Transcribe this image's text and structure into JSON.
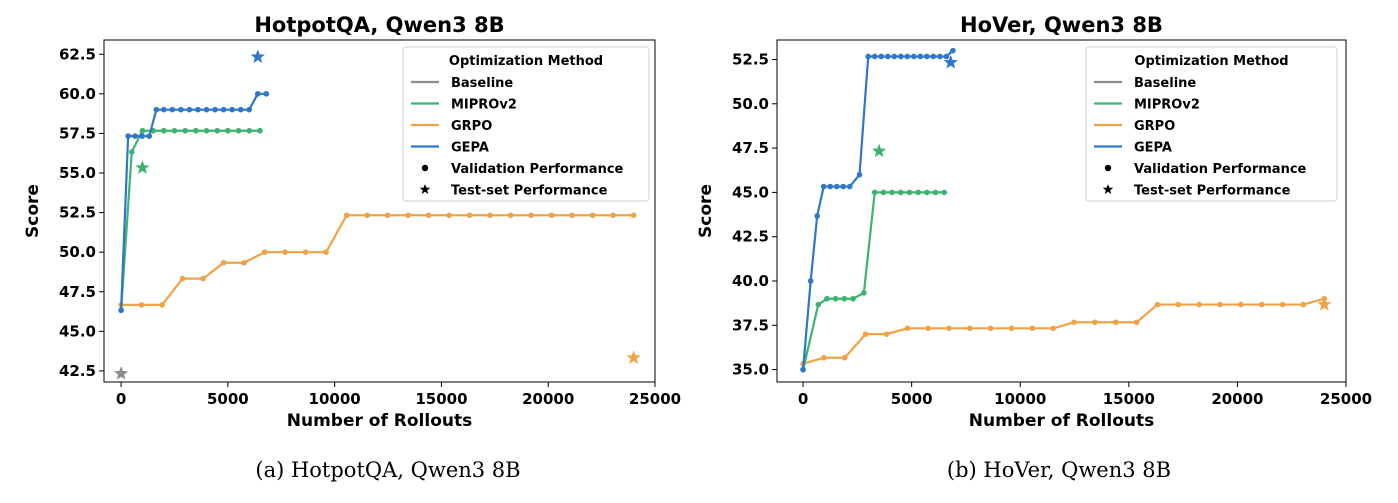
{
  "legend": {
    "title": "Optimization Method",
    "items": [
      {
        "kind": "line",
        "label": "Baseline",
        "color": "#8c8c8c"
      },
      {
        "kind": "line",
        "label": "MIPROv2",
        "color": "#3cb371"
      },
      {
        "kind": "line",
        "label": "GRPO",
        "color": "#f0a346"
      },
      {
        "kind": "line",
        "label": "GEPA",
        "color": "#2f77c8"
      },
      {
        "kind": "dot",
        "label": "Validation Performance",
        "color": "#000000"
      },
      {
        "kind": "star",
        "label": "Test-set Performance",
        "color": "#000000"
      }
    ]
  },
  "charts": [
    {
      "caption": "(a) HotpotQA, Qwen3 8B"
    },
    {
      "caption": "(b) HoVer, Qwen3 8B"
    }
  ],
  "chart_data": [
    {
      "type": "line",
      "title": "HotpotQA, Qwen3 8B",
      "xlabel": "Number of Rollouts",
      "ylabel": "Score",
      "xlim": [
        -800,
        25000
      ],
      "ylim": [
        41.8,
        63.4
      ],
      "xticks": [
        0,
        5000,
        10000,
        15000,
        20000,
        25000
      ],
      "yticks": [
        42.5,
        45.0,
        47.5,
        50.0,
        52.5,
        55.0,
        57.5,
        60.0,
        62.5
      ],
      "tick_decimals": 1,
      "series": [
        {
          "name": "GRPO",
          "color": "#f0a346",
          "x": [
            0,
            960,
            1920,
            2880,
            3840,
            4800,
            5760,
            6720,
            7680,
            8640,
            9600,
            10560,
            11520,
            12480,
            13440,
            14400,
            15360,
            16320,
            17280,
            18240,
            19200,
            20160,
            21120,
            22080,
            23040,
            24000
          ],
          "y": [
            46.67,
            46.67,
            46.67,
            48.33,
            48.33,
            49.33,
            49.33,
            50.0,
            50.0,
            50.0,
            50.0,
            52.33,
            52.33,
            52.33,
            52.33,
            52.33,
            52.33,
            52.33,
            52.33,
            52.33,
            52.33,
            52.33,
            52.33,
            52.33,
            52.33,
            52.33
          ]
        },
        {
          "name": "MIPROv2",
          "color": "#3cb371",
          "x": [
            0,
            500,
            1000,
            1500,
            2000,
            2500,
            3000,
            3500,
            4000,
            4500,
            5000,
            5500,
            6000,
            6500
          ],
          "y": [
            46.33,
            56.33,
            57.67,
            57.67,
            57.67,
            57.67,
            57.67,
            57.67,
            57.67,
            57.67,
            57.67,
            57.67,
            57.67,
            57.67
          ]
        },
        {
          "name": "GEPA",
          "color": "#2f77c8",
          "x": [
            0,
            330,
            660,
            990,
            1320,
            1650,
            2000,
            2400,
            2800,
            3200,
            3600,
            4000,
            4400,
            4800,
            5200,
            5600,
            6000,
            6400,
            6800
          ],
          "y": [
            46.33,
            57.33,
            57.33,
            57.33,
            57.33,
            59.0,
            59.0,
            59.0,
            59.0,
            59.0,
            59.0,
            59.0,
            59.0,
            59.0,
            59.0,
            59.0,
            59.0,
            60.0,
            60.0
          ]
        }
      ],
      "test_points": [
        {
          "name": "Baseline",
          "x": 0,
          "y": 42.33,
          "color": "#8c8c8c"
        },
        {
          "name": "MIPROv2",
          "x": 1000,
          "y": 55.33,
          "color": "#3cb371"
        },
        {
          "name": "GEPA",
          "x": 6400,
          "y": 62.33,
          "color": "#2f77c8"
        },
        {
          "name": "GRPO",
          "x": 24000,
          "y": 43.33,
          "color": "#f0a346"
        }
      ],
      "legend_placement": "top-right"
    },
    {
      "type": "line",
      "title": "HoVer, Qwen3 8B",
      "xlabel": "Number of Rollouts",
      "ylabel": "Score",
      "xlim": [
        -1200,
        25000
      ],
      "ylim": [
        34.3,
        53.6
      ],
      "xticks": [
        0,
        5000,
        10000,
        15000,
        20000,
        25000
      ],
      "yticks": [
        35.0,
        37.5,
        40.0,
        42.5,
        45.0,
        47.5,
        50.0,
        52.5
      ],
      "tick_decimals": 1,
      "series": [
        {
          "name": "GRPO",
          "color": "#f0a346",
          "x": [
            0,
            960,
            1920,
            2880,
            3840,
            4800,
            5760,
            6720,
            7680,
            8640,
            9600,
            10560,
            11520,
            12480,
            13440,
            14400,
            15360,
            16320,
            17280,
            18240,
            19200,
            20160,
            21120,
            22080,
            23040,
            24000
          ],
          "y": [
            35.33,
            35.67,
            35.67,
            37.0,
            37.0,
            37.33,
            37.33,
            37.33,
            37.33,
            37.33,
            37.33,
            37.33,
            37.33,
            37.67,
            37.67,
            37.67,
            37.67,
            38.67,
            38.67,
            38.67,
            38.67,
            38.67,
            38.67,
            38.67,
            38.67,
            39.0
          ]
        },
        {
          "name": "MIPROv2",
          "color": "#3cb371",
          "x": [
            0,
            700,
            1100,
            1500,
            1900,
            2300,
            2800,
            3300,
            3700,
            4100,
            4500,
            4900,
            5300,
            5700,
            6100,
            6500
          ],
          "y": [
            35.0,
            38.67,
            39.0,
            39.0,
            39.0,
            39.0,
            39.33,
            45.0,
            45.0,
            45.0,
            45.0,
            45.0,
            45.0,
            45.0,
            45.0,
            45.0
          ]
        },
        {
          "name": "GEPA",
          "color": "#2f77c8",
          "x": [
            0,
            350,
            650,
            950,
            1250,
            1550,
            1850,
            2150,
            2600,
            3000,
            3300,
            3600,
            3900,
            4200,
            4500,
            4800,
            5100,
            5400,
            5700,
            6000,
            6300,
            6600,
            6900
          ],
          "y": [
            35.0,
            40.0,
            43.67,
            45.33,
            45.33,
            45.33,
            45.33,
            45.33,
            46.0,
            52.67,
            52.67,
            52.67,
            52.67,
            52.67,
            52.67,
            52.67,
            52.67,
            52.67,
            52.67,
            52.67,
            52.67,
            52.67,
            53.0
          ]
        }
      ],
      "test_points": [
        {
          "name": "MIPROv2",
          "x": 3500,
          "y": 47.33,
          "color": "#3cb371"
        },
        {
          "name": "GEPA",
          "x": 6800,
          "y": 52.33,
          "color": "#2f77c8"
        },
        {
          "name": "GRPO",
          "x": 24000,
          "y": 38.67,
          "color": "#f0a346"
        }
      ],
      "legend_placement": "top-right"
    }
  ]
}
